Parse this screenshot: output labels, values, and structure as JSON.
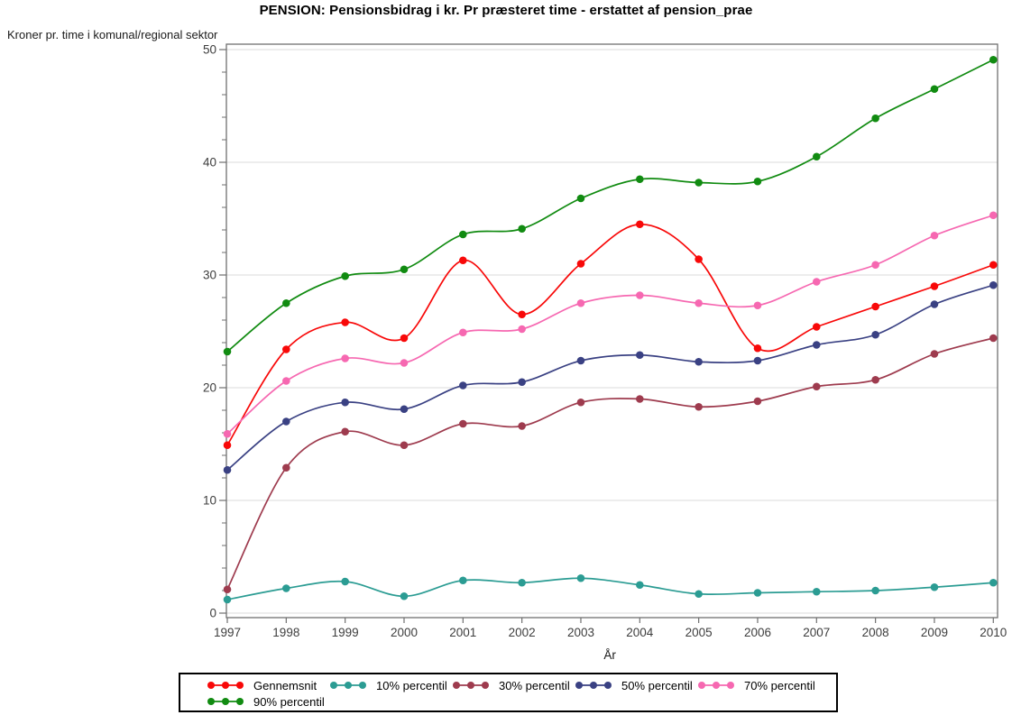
{
  "chart": {
    "title": "PENSION: Pensionsbidrag i kr. Pr præsteret time - erstattet af pension_prae",
    "y_unit_label": "Kroner pr. time i komunal/regional sektor",
    "x_axis_label": "År"
  },
  "chart_data": {
    "type": "line",
    "title": "PENSION: Pensionsbidrag i kr. Pr præsteret time - erstattet af pension_prae",
    "xlabel": "År",
    "ylabel": "Kroner pr. time i komunal/regional sektor",
    "x": [
      1997,
      1998,
      1999,
      2000,
      2001,
      2002,
      2003,
      2004,
      2005,
      2006,
      2007,
      2008,
      2009,
      2010
    ],
    "ylim": [
      0,
      50
    ],
    "y_major_ticks": [
      0,
      10,
      20,
      30,
      40,
      50
    ],
    "y_minor_tick_step": 2,
    "grid": true,
    "legend_position": "bottom",
    "interpolation": "smooth-spline",
    "series": [
      {
        "name": "Gennemsnit",
        "color": "#f80808",
        "values": [
          14.9,
          23.4,
          25.8,
          24.4,
          31.3,
          26.5,
          31.0,
          34.5,
          31.4,
          23.5,
          25.4,
          27.2,
          29.0,
          30.9
        ]
      },
      {
        "name": "10% percentil",
        "color": "#2b9c93",
        "values": [
          1.2,
          2.2,
          2.8,
          1.5,
          2.9,
          2.7,
          3.1,
          2.5,
          1.7,
          1.8,
          1.9,
          2.0,
          2.3,
          2.7
        ]
      },
      {
        "name": "30% percentil",
        "color": "#9e3b4e",
        "values": [
          2.1,
          12.9,
          16.1,
          14.9,
          16.8,
          16.6,
          18.7,
          19.0,
          18.3,
          18.8,
          20.1,
          20.7,
          23.0,
          24.4
        ]
      },
      {
        "name": "50% percentil",
        "color": "#3a4183",
        "values": [
          12.7,
          17.0,
          18.7,
          18.1,
          20.2,
          20.5,
          22.4,
          22.9,
          22.3,
          22.4,
          23.8,
          24.7,
          27.4,
          29.1
        ]
      },
      {
        "name": "70% percentil",
        "color": "#f668b1",
        "values": [
          15.9,
          20.6,
          22.6,
          22.2,
          24.9,
          25.2,
          27.5,
          28.2,
          27.5,
          27.3,
          29.4,
          30.9,
          33.5,
          35.3
        ]
      },
      {
        "name": "90% percentil",
        "color": "#118b11",
        "values": [
          23.2,
          27.5,
          29.9,
          30.5,
          33.6,
          34.1,
          36.8,
          38.5,
          38.2,
          38.3,
          40.5,
          43.9,
          46.5,
          49.1
        ]
      }
    ],
    "style": {
      "frame_color": "#6f6f6f",
      "grid_color": "#e2e2e2",
      "tick_label_color": "#3d3d3d"
    }
  }
}
